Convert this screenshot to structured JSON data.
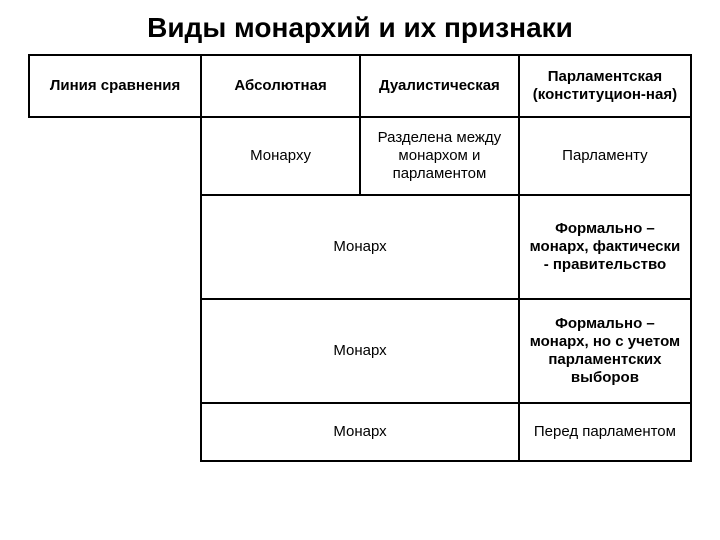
{
  "title": "Виды монархий и их признаки",
  "headers": {
    "comparison": "Линия сравнения",
    "absolute": "Абсолютная",
    "dualistic": "Дуалистическая",
    "parliamentary": "Парламентская (конституцион-ная)"
  },
  "rows": {
    "r1": {
      "c1": "Монарху",
      "c2": "Разделена между монархом и парламентом",
      "c3": "Парламенту"
    },
    "r2": {
      "merged": "Монарх",
      "c3": "Формально – монарх, фактически - правительство"
    },
    "r3": {
      "merged": "Монарх",
      "c3": "Формально – монарх, но с учетом парламентских выборов"
    },
    "r4": {
      "merged": "Монарх",
      "c3": "Перед парламентом"
    }
  },
  "style": {
    "bg": "#ffffff",
    "border": "#000000",
    "text": "#000000",
    "title_fontsize": 28,
    "cell_fontsize": 15
  }
}
